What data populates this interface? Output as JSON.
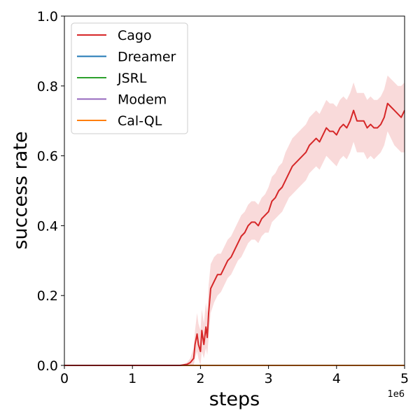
{
  "chart_data": {
    "type": "line",
    "title": "",
    "xlabel": "steps",
    "ylabel": "success rate",
    "x_offset_label": "1e6",
    "xlim": [
      0,
      5000000
    ],
    "ylim": [
      0,
      1.0
    ],
    "x_ticks": [
      0,
      1000000,
      2000000,
      3000000,
      4000000,
      5000000
    ],
    "x_tick_labels": [
      "0",
      "1",
      "2",
      "3",
      "4",
      "5"
    ],
    "y_ticks": [
      0.0,
      0.2,
      0.4,
      0.6,
      0.8,
      1.0
    ],
    "y_tick_labels": [
      "0.0",
      "0.2",
      "0.4",
      "0.6",
      "0.8",
      "1.0"
    ],
    "grid": false,
    "legend_position": "top-left",
    "series": [
      {
        "name": "Cago",
        "color": "#d62728",
        "band_color": "#f8d3d3",
        "x": [
          0,
          500000,
          1000000,
          1500000,
          1700000,
          1800000,
          1850000,
          1900000,
          1920000,
          1950000,
          1970000,
          2000000,
          2020000,
          2050000,
          2080000,
          2100000,
          2120000,
          2150000,
          2200000,
          2250000,
          2300000,
          2350000,
          2400000,
          2450000,
          2500000,
          2550000,
          2600000,
          2650000,
          2700000,
          2750000,
          2800000,
          2850000,
          2900000,
          2950000,
          3000000,
          3050000,
          3100000,
          3150000,
          3200000,
          3250000,
          3300000,
          3350000,
          3400000,
          3450000,
          3500000,
          3550000,
          3600000,
          3650000,
          3700000,
          3750000,
          3800000,
          3850000,
          3900000,
          3950000,
          4000000,
          4050000,
          4100000,
          4150000,
          4200000,
          4250000,
          4300000,
          4350000,
          4400000,
          4450000,
          4500000,
          4550000,
          4600000,
          4650000,
          4700000,
          4750000,
          4800000,
          4850000,
          4900000,
          4950000,
          5000000
        ],
        "values": [
          0.0,
          0.0,
          0.0,
          0.0,
          0.0,
          0.003,
          0.008,
          0.02,
          0.06,
          0.09,
          0.06,
          0.04,
          0.1,
          0.06,
          0.11,
          0.08,
          0.15,
          0.22,
          0.24,
          0.26,
          0.26,
          0.28,
          0.3,
          0.31,
          0.33,
          0.35,
          0.37,
          0.38,
          0.4,
          0.41,
          0.41,
          0.4,
          0.42,
          0.43,
          0.44,
          0.47,
          0.48,
          0.5,
          0.51,
          0.53,
          0.55,
          0.57,
          0.58,
          0.59,
          0.6,
          0.61,
          0.63,
          0.64,
          0.65,
          0.64,
          0.66,
          0.68,
          0.67,
          0.67,
          0.66,
          0.68,
          0.69,
          0.68,
          0.7,
          0.73,
          0.7,
          0.7,
          0.7,
          0.68,
          0.69,
          0.68,
          0.68,
          0.69,
          0.71,
          0.75,
          0.74,
          0.73,
          0.72,
          0.71,
          0.73
        ],
        "lower": [
          0.0,
          0.0,
          0.0,
          0.0,
          0.0,
          0.0,
          0.0,
          0.0,
          0.02,
          0.04,
          0.02,
          0.0,
          0.04,
          0.02,
          0.05,
          0.03,
          0.08,
          0.15,
          0.18,
          0.2,
          0.21,
          0.23,
          0.25,
          0.26,
          0.28,
          0.3,
          0.31,
          0.33,
          0.35,
          0.36,
          0.36,
          0.35,
          0.37,
          0.38,
          0.38,
          0.41,
          0.42,
          0.43,
          0.44,
          0.46,
          0.48,
          0.49,
          0.5,
          0.51,
          0.52,
          0.53,
          0.55,
          0.56,
          0.57,
          0.56,
          0.58,
          0.6,
          0.59,
          0.58,
          0.57,
          0.59,
          0.6,
          0.59,
          0.61,
          0.64,
          0.61,
          0.61,
          0.61,
          0.59,
          0.6,
          0.59,
          0.6,
          0.61,
          0.63,
          0.67,
          0.65,
          0.63,
          0.62,
          0.61,
          0.61
        ],
        "upper": [
          0.0,
          0.0,
          0.0,
          0.0,
          0.0,
          0.008,
          0.02,
          0.05,
          0.1,
          0.15,
          0.12,
          0.1,
          0.16,
          0.12,
          0.18,
          0.15,
          0.23,
          0.29,
          0.31,
          0.32,
          0.32,
          0.34,
          0.36,
          0.37,
          0.39,
          0.41,
          0.43,
          0.44,
          0.46,
          0.47,
          0.47,
          0.46,
          0.48,
          0.49,
          0.51,
          0.54,
          0.55,
          0.57,
          0.58,
          0.61,
          0.63,
          0.65,
          0.66,
          0.67,
          0.68,
          0.69,
          0.71,
          0.72,
          0.73,
          0.72,
          0.74,
          0.76,
          0.75,
          0.75,
          0.74,
          0.76,
          0.77,
          0.76,
          0.78,
          0.81,
          0.78,
          0.78,
          0.78,
          0.76,
          0.77,
          0.76,
          0.76,
          0.77,
          0.79,
          0.83,
          0.82,
          0.81,
          0.8,
          0.8,
          0.81
        ]
      },
      {
        "name": "Dreamer",
        "color": "#1f77b4",
        "x": [
          0,
          5000000
        ],
        "values": [
          0.0,
          0.0
        ]
      },
      {
        "name": "JSRL",
        "color": "#2ca02c",
        "x": [
          0,
          5000000
        ],
        "values": [
          0.0,
          0.0
        ]
      },
      {
        "name": "Modem",
        "color": "#9467bd",
        "x": [
          0,
          5000000
        ],
        "values": [
          0.0,
          0.0
        ]
      },
      {
        "name": "Cal-QL",
        "color": "#ff7f0e",
        "x": [
          0,
          5000000
        ],
        "values": [
          0.0,
          0.0
        ]
      }
    ]
  }
}
